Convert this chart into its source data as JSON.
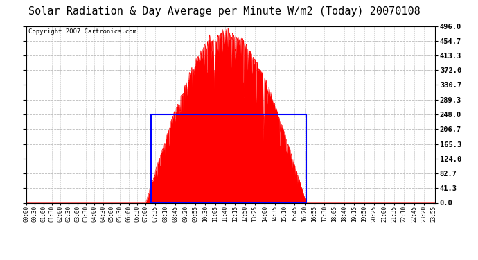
{
  "title": "Solar Radiation & Day Average per Minute W/m2 (Today) 20070108",
  "copyright": "Copyright 2007 Cartronics.com",
  "bg_color": "#ffffff",
  "plot_bg": "#ffffff",
  "y_min": 0.0,
  "y_max": 496.0,
  "y_ticks": [
    0.0,
    41.3,
    82.7,
    124.0,
    165.3,
    206.7,
    248.0,
    289.3,
    330.7,
    372.0,
    413.3,
    454.7,
    496.0
  ],
  "bar_color": "#ff0000",
  "avg_rect_color": "#0000ff",
  "grid_color": "#bbbbbb",
  "title_fontsize": 11,
  "copyright_fontsize": 6.5,
  "x_tick_fontsize": 5.5,
  "y_tick_fontsize": 7.5,
  "avg_rect_x1": 440,
  "avg_rect_x2": 985,
  "avg_rect_y": 248.0,
  "minutes_per_day": 1440,
  "sunrise": 420,
  "sunset": 985,
  "peak_minute": 690,
  "x_tick_labels": [
    "00:00",
    "00:30",
    "01:00",
    "01:30",
    "02:00",
    "02:30",
    "03:00",
    "03:30",
    "04:00",
    "04:30",
    "05:00",
    "05:30",
    "06:00",
    "06:30",
    "07:00",
    "07:35",
    "08:10",
    "08:45",
    "09:20",
    "09:55",
    "10:30",
    "11:05",
    "11:40",
    "12:15",
    "12:50",
    "13:25",
    "14:00",
    "14:35",
    "15:10",
    "15:45",
    "16:20",
    "16:55",
    "17:30",
    "18:05",
    "18:40",
    "19:15",
    "19:50",
    "20:25",
    "21:00",
    "21:35",
    "22:10",
    "22:45",
    "23:20",
    "23:55"
  ],
  "x_tick_positions": [
    0,
    30,
    60,
    90,
    120,
    150,
    180,
    210,
    240,
    270,
    300,
    330,
    360,
    390,
    420,
    455,
    490,
    525,
    560,
    595,
    630,
    665,
    700,
    735,
    770,
    805,
    840,
    875,
    910,
    945,
    980,
    1015,
    1050,
    1085,
    1120,
    1155,
    1190,
    1225,
    1260,
    1295,
    1330,
    1365,
    1400,
    1435
  ]
}
